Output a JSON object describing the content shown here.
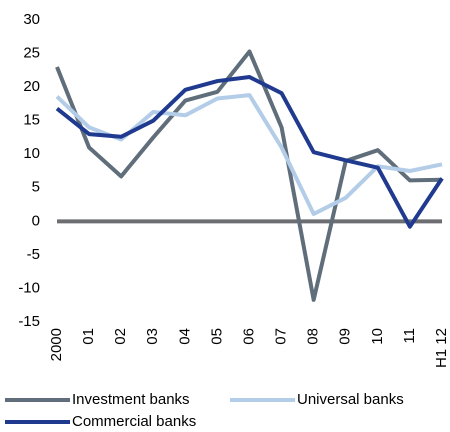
{
  "chart_data": {
    "type": "line",
    "categories": [
      "2000",
      "01",
      "02",
      "03",
      "04",
      "05",
      "06",
      "07",
      "08",
      "09",
      "10",
      "11",
      "H1 12"
    ],
    "series": [
      {
        "name": "Investment banks",
        "color": "#5f6e7a",
        "values": [
          23,
          11,
          6.7,
          12.5,
          18,
          19.3,
          25.3,
          14,
          -11.7,
          9,
          10.6,
          6.1,
          6.2
        ]
      },
      {
        "name": "Universal banks",
        "color": "#b3cde8",
        "values": [
          18.6,
          14,
          12.2,
          16.3,
          15.8,
          18.3,
          18.8,
          11,
          1.1,
          3.5,
          8.2,
          7.5,
          8.5
        ]
      },
      {
        "name": "Commercial banks",
        "color": "#1f3a8f",
        "values": [
          16.8,
          13,
          12.6,
          15,
          19.6,
          20.9,
          21.5,
          19.1,
          10.3,
          9.1,
          8,
          -0.8,
          6.4
        ]
      }
    ],
    "ylim": [
      -15,
      30
    ],
    "yticks": [
      -15,
      -10,
      -5,
      0,
      5,
      10,
      15,
      20,
      25,
      30
    ],
    "zero_line": true,
    "legend": "bottom"
  }
}
